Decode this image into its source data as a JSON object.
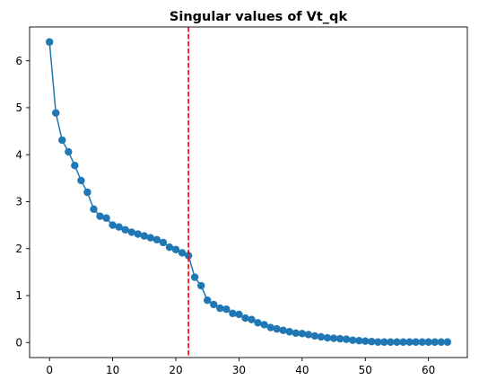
{
  "chart_data": {
    "type": "line",
    "title": "Singular values of Vt_qk",
    "xlabel": "",
    "ylabel": "",
    "xlim": [
      -3.15,
      66.15
    ],
    "ylim": [
      -0.32,
      6.72
    ],
    "x_ticks": [
      0,
      10,
      20,
      30,
      40,
      50,
      60
    ],
    "y_ticks": [
      0,
      1,
      2,
      3,
      4,
      5,
      6
    ],
    "grid": false,
    "series": [
      {
        "color": "#1f77b4",
        "marker": "circle",
        "x": [
          0,
          1,
          2,
          3,
          4,
          5,
          6,
          7,
          8,
          9,
          10,
          11,
          12,
          13,
          14,
          15,
          16,
          17,
          18,
          19,
          20,
          21,
          22,
          23,
          24,
          25,
          26,
          27,
          28,
          29,
          30,
          31,
          32,
          33,
          34,
          35,
          36,
          37,
          38,
          39,
          40,
          41,
          42,
          43,
          44,
          45,
          46,
          47,
          48,
          49,
          50,
          51,
          52,
          53,
          54,
          55,
          56,
          57,
          58,
          59,
          60,
          61,
          62,
          63
        ],
        "values": [
          6.4,
          4.89,
          4.31,
          4.06,
          3.77,
          3.45,
          3.2,
          2.84,
          2.69,
          2.65,
          2.5,
          2.46,
          2.4,
          2.35,
          2.31,
          2.27,
          2.23,
          2.19,
          2.13,
          2.03,
          1.98,
          1.91,
          1.85,
          1.39,
          1.21,
          0.9,
          0.81,
          0.73,
          0.71,
          0.62,
          0.6,
          0.52,
          0.49,
          0.42,
          0.38,
          0.32,
          0.29,
          0.26,
          0.23,
          0.2,
          0.19,
          0.17,
          0.14,
          0.12,
          0.1,
          0.09,
          0.08,
          0.07,
          0.05,
          0.04,
          0.03,
          0.02,
          0.01,
          0.01,
          0.01,
          0.01,
          0.01,
          0.01,
          0.01,
          0.01,
          0.01,
          0.01,
          0.01,
          0.01
        ]
      }
    ],
    "vline": {
      "x": 22,
      "color": "#ff0000",
      "style": "dashed"
    }
  }
}
